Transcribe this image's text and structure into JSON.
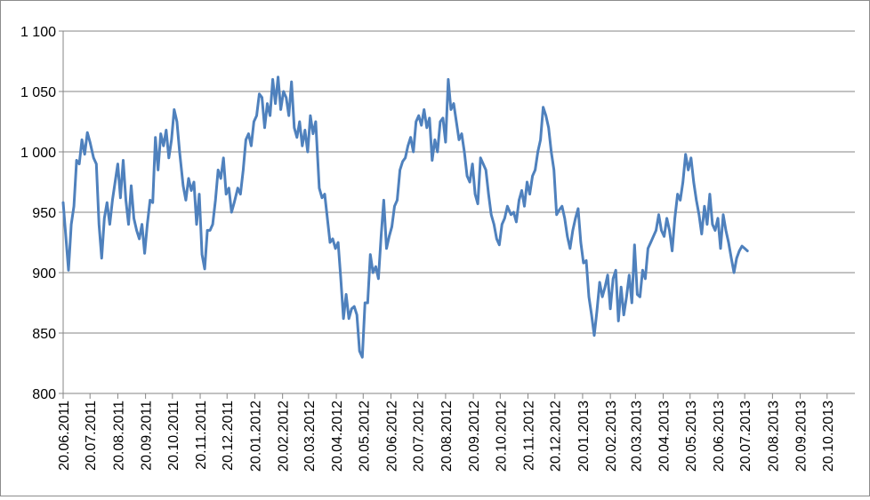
{
  "chart_data": {
    "type": "line",
    "title": "",
    "xlabel": "",
    "ylabel": "",
    "ylim": [
      800,
      1100
    ],
    "yticks": [
      800,
      850,
      900,
      950,
      1000,
      1050,
      1100
    ],
    "ytick_labels": [
      "800",
      "850",
      "900",
      "950",
      "1 000",
      "1 050",
      "1 100"
    ],
    "xlim": [
      "2011-06-20",
      "2013-11-20"
    ],
    "x_tick_labels": [
      "20.06.2011",
      "20.07.2011",
      "20.08.2011",
      "20.09.2011",
      "20.10.2011",
      "20.11.2011",
      "20.12.2011",
      "20.01.2012",
      "20.02.2012",
      "20.03.2012",
      "20.04.2012",
      "20.05.2012",
      "20.06.2012",
      "20.07.2012",
      "20.08.2012",
      "20.09.2012",
      "20.10.2012",
      "20.11.2012",
      "20.12.2012",
      "20.01.2013",
      "20.02.2013",
      "20.03.2013",
      "20.04.2013",
      "20.05.2013",
      "20.06.2013",
      "20.07.2013",
      "20.08.2013",
      "20.09.2013",
      "20.10.2013"
    ],
    "grid": "horizontal",
    "legend": "none",
    "line_color": "#4f81bd",
    "series": [
      {
        "values": [
          [
            "2011-06-20",
            958
          ],
          [
            "2011-06-23",
            930
          ],
          [
            "2011-06-26",
            902
          ],
          [
            "2011-06-29",
            940
          ],
          [
            "2011-07-02",
            955
          ],
          [
            "2011-07-05",
            993
          ],
          [
            "2011-07-08",
            990
          ],
          [
            "2011-07-11",
            1010
          ],
          [
            "2011-07-14",
            998
          ],
          [
            "2011-07-17",
            1016
          ],
          [
            "2011-07-20",
            1008
          ],
          [
            "2011-07-24",
            995
          ],
          [
            "2011-07-27",
            990
          ],
          [
            "2011-07-30",
            940
          ],
          [
            "2011-08-02",
            912
          ],
          [
            "2011-08-05",
            945
          ],
          [
            "2011-08-08",
            958
          ],
          [
            "2011-08-11",
            940
          ],
          [
            "2011-08-14",
            960
          ],
          [
            "2011-08-17",
            975
          ],
          [
            "2011-08-20",
            990
          ],
          [
            "2011-08-23",
            962
          ],
          [
            "2011-08-26",
            993
          ],
          [
            "2011-08-29",
            960
          ],
          [
            "2011-09-01",
            940
          ],
          [
            "2011-09-04",
            972
          ],
          [
            "2011-09-07",
            945
          ],
          [
            "2011-09-10",
            935
          ],
          [
            "2011-09-13",
            928
          ],
          [
            "2011-09-16",
            940
          ],
          [
            "2011-09-19",
            916
          ],
          [
            "2011-09-22",
            940
          ],
          [
            "2011-09-25",
            960
          ],
          [
            "2011-09-28",
            958
          ],
          [
            "2011-10-01",
            1012
          ],
          [
            "2011-10-04",
            985
          ],
          [
            "2011-10-07",
            1015
          ],
          [
            "2011-10-10",
            1005
          ],
          [
            "2011-10-13",
            1018
          ],
          [
            "2011-10-16",
            995
          ],
          [
            "2011-10-19",
            1010
          ],
          [
            "2011-10-22",
            1035
          ],
          [
            "2011-10-25",
            1025
          ],
          [
            "2011-10-28",
            1000
          ],
          [
            "2011-11-01",
            972
          ],
          [
            "2011-11-04",
            960
          ],
          [
            "2011-11-07",
            978
          ],
          [
            "2011-11-10",
            968
          ],
          [
            "2011-11-13",
            975
          ],
          [
            "2011-11-16",
            940
          ],
          [
            "2011-11-19",
            965
          ],
          [
            "2011-11-22",
            915
          ],
          [
            "2011-11-25",
            903
          ],
          [
            "2011-11-28",
            935
          ],
          [
            "2011-12-01",
            935
          ],
          [
            "2011-12-04",
            940
          ],
          [
            "2011-12-07",
            960
          ],
          [
            "2011-12-10",
            985
          ],
          [
            "2011-12-13",
            978
          ],
          [
            "2011-12-16",
            995
          ],
          [
            "2011-12-19",
            965
          ],
          [
            "2011-12-22",
            970
          ],
          [
            "2011-12-25",
            950
          ],
          [
            "2011-12-28",
            958
          ],
          [
            "2012-01-01",
            970
          ],
          [
            "2012-01-04",
            965
          ],
          [
            "2012-01-07",
            985
          ],
          [
            "2012-01-10",
            1010
          ],
          [
            "2012-01-13",
            1015
          ],
          [
            "2012-01-16",
            1005
          ],
          [
            "2012-01-19",
            1025
          ],
          [
            "2012-01-22",
            1030
          ],
          [
            "2012-01-25",
            1048
          ],
          [
            "2012-01-28",
            1045
          ],
          [
            "2012-01-31",
            1020
          ],
          [
            "2012-02-03",
            1040
          ],
          [
            "2012-02-06",
            1030
          ],
          [
            "2012-02-09",
            1060
          ],
          [
            "2012-02-12",
            1040
          ],
          [
            "2012-02-15",
            1062
          ],
          [
            "2012-02-18",
            1035
          ],
          [
            "2012-02-21",
            1050
          ],
          [
            "2012-02-24",
            1045
          ],
          [
            "2012-02-27",
            1030
          ],
          [
            "2012-03-01",
            1058
          ],
          [
            "2012-03-04",
            1020
          ],
          [
            "2012-03-07",
            1012
          ],
          [
            "2012-03-10",
            1025
          ],
          [
            "2012-03-13",
            1005
          ],
          [
            "2012-03-16",
            1018
          ],
          [
            "2012-03-19",
            1000
          ],
          [
            "2012-03-22",
            1030
          ],
          [
            "2012-03-25",
            1015
          ],
          [
            "2012-03-28",
            1025
          ],
          [
            "2012-04-01",
            970
          ],
          [
            "2012-04-04",
            962
          ],
          [
            "2012-04-07",
            965
          ],
          [
            "2012-04-10",
            945
          ],
          [
            "2012-04-13",
            925
          ],
          [
            "2012-04-16",
            928
          ],
          [
            "2012-04-19",
            920
          ],
          [
            "2012-04-22",
            925
          ],
          [
            "2012-04-25",
            895
          ],
          [
            "2012-04-28",
            862
          ],
          [
            "2012-05-01",
            882
          ],
          [
            "2012-05-04",
            862
          ],
          [
            "2012-05-07",
            870
          ],
          [
            "2012-05-10",
            872
          ],
          [
            "2012-05-13",
            865
          ],
          [
            "2012-05-16",
            835
          ],
          [
            "2012-05-19",
            830
          ],
          [
            "2012-05-22",
            875
          ],
          [
            "2012-05-25",
            875
          ],
          [
            "2012-05-28",
            915
          ],
          [
            "2012-05-31",
            900
          ],
          [
            "2012-06-03",
            905
          ],
          [
            "2012-06-06",
            895
          ],
          [
            "2012-06-09",
            930
          ],
          [
            "2012-06-12",
            960
          ],
          [
            "2012-06-15",
            920
          ],
          [
            "2012-06-18",
            930
          ],
          [
            "2012-06-21",
            938
          ],
          [
            "2012-06-24",
            955
          ],
          [
            "2012-06-27",
            960
          ],
          [
            "2012-06-30",
            985
          ],
          [
            "2012-07-03",
            992
          ],
          [
            "2012-07-06",
            995
          ],
          [
            "2012-07-09",
            1005
          ],
          [
            "2012-07-12",
            1012
          ],
          [
            "2012-07-15",
            1000
          ],
          [
            "2012-07-18",
            1025
          ],
          [
            "2012-07-21",
            1030
          ],
          [
            "2012-07-24",
            1022
          ],
          [
            "2012-07-27",
            1035
          ],
          [
            "2012-07-30",
            1020
          ],
          [
            "2012-08-02",
            1028
          ],
          [
            "2012-08-05",
            993
          ],
          [
            "2012-08-08",
            1010
          ],
          [
            "2012-08-11",
            1000
          ],
          [
            "2012-08-14",
            1025
          ],
          [
            "2012-08-17",
            1028
          ],
          [
            "2012-08-20",
            1008
          ],
          [
            "2012-08-23",
            1060
          ],
          [
            "2012-08-26",
            1035
          ],
          [
            "2012-08-29",
            1040
          ],
          [
            "2012-09-01",
            1025
          ],
          [
            "2012-09-04",
            1010
          ],
          [
            "2012-09-07",
            1015
          ],
          [
            "2012-09-10",
            1000
          ],
          [
            "2012-09-13",
            980
          ],
          [
            "2012-09-16",
            975
          ],
          [
            "2012-09-19",
            990
          ],
          [
            "2012-09-22",
            965
          ],
          [
            "2012-09-25",
            957
          ],
          [
            "2012-09-28",
            995
          ],
          [
            "2012-10-01",
            990
          ],
          [
            "2012-10-04",
            985
          ],
          [
            "2012-10-07",
            965
          ],
          [
            "2012-10-10",
            948
          ],
          [
            "2012-10-13",
            940
          ],
          [
            "2012-10-16",
            928
          ],
          [
            "2012-10-19",
            923
          ],
          [
            "2012-10-22",
            940
          ],
          [
            "2012-10-25",
            945
          ],
          [
            "2012-10-28",
            955
          ],
          [
            "2012-11-01",
            948
          ],
          [
            "2012-11-04",
            950
          ],
          [
            "2012-11-07",
            942
          ],
          [
            "2012-11-10",
            960
          ],
          [
            "2012-11-13",
            968
          ],
          [
            "2012-11-16",
            955
          ],
          [
            "2012-11-19",
            975
          ],
          [
            "2012-11-22",
            965
          ],
          [
            "2012-11-25",
            980
          ],
          [
            "2012-11-28",
            985
          ],
          [
            "2012-12-01",
            1000
          ],
          [
            "2012-12-04",
            1010
          ],
          [
            "2012-12-07",
            1037
          ],
          [
            "2012-12-10",
            1030
          ],
          [
            "2012-12-13",
            1020
          ],
          [
            "2012-12-16",
            1000
          ],
          [
            "2012-12-19",
            985
          ],
          [
            "2012-12-22",
            948
          ],
          [
            "2012-12-25",
            952
          ],
          [
            "2012-12-28",
            955
          ],
          [
            "2012-12-31",
            945
          ],
          [
            "2013-01-03",
            930
          ],
          [
            "2013-01-06",
            920
          ],
          [
            "2013-01-09",
            935
          ],
          [
            "2013-01-12",
            945
          ],
          [
            "2013-01-15",
            953
          ],
          [
            "2013-01-18",
            925
          ],
          [
            "2013-01-21",
            908
          ],
          [
            "2013-01-24",
            910
          ],
          [
            "2013-01-27",
            880
          ],
          [
            "2013-01-30",
            865
          ],
          [
            "2013-02-02",
            848
          ],
          [
            "2013-02-05",
            868
          ],
          [
            "2013-02-08",
            892
          ],
          [
            "2013-02-11",
            880
          ],
          [
            "2013-02-14",
            888
          ],
          [
            "2013-02-17",
            898
          ],
          [
            "2013-02-20",
            870
          ],
          [
            "2013-02-23",
            895
          ],
          [
            "2013-02-26",
            902
          ],
          [
            "2013-03-01",
            860
          ],
          [
            "2013-03-04",
            888
          ],
          [
            "2013-03-07",
            865
          ],
          [
            "2013-03-10",
            880
          ],
          [
            "2013-03-13",
            898
          ],
          [
            "2013-03-16",
            875
          ],
          [
            "2013-03-19",
            923
          ],
          [
            "2013-03-22",
            882
          ],
          [
            "2013-03-25",
            880
          ],
          [
            "2013-03-28",
            902
          ],
          [
            "2013-03-31",
            895
          ],
          [
            "2013-04-03",
            920
          ],
          [
            "2013-04-06",
            925
          ],
          [
            "2013-04-09",
            930
          ],
          [
            "2013-04-12",
            935
          ],
          [
            "2013-04-15",
            948
          ],
          [
            "2013-04-18",
            935
          ],
          [
            "2013-04-21",
            930
          ],
          [
            "2013-04-24",
            945
          ],
          [
            "2013-04-27",
            935
          ],
          [
            "2013-04-30",
            918
          ],
          [
            "2013-05-03",
            945
          ],
          [
            "2013-05-06",
            965
          ],
          [
            "2013-05-09",
            960
          ],
          [
            "2013-05-12",
            975
          ],
          [
            "2013-05-15",
            998
          ],
          [
            "2013-05-18",
            985
          ],
          [
            "2013-05-21",
            995
          ],
          [
            "2013-05-24",
            975
          ],
          [
            "2013-05-27",
            960
          ],
          [
            "2013-05-30",
            948
          ],
          [
            "2013-06-02",
            932
          ],
          [
            "2013-06-05",
            955
          ],
          [
            "2013-06-08",
            940
          ],
          [
            "2013-06-11",
            965
          ],
          [
            "2013-06-14",
            940
          ],
          [
            "2013-06-17",
            935
          ],
          [
            "2013-06-20",
            945
          ],
          [
            "2013-06-23",
            920
          ],
          [
            "2013-06-26",
            948
          ],
          [
            "2013-06-29",
            935
          ],
          [
            "2013-07-02",
            925
          ],
          [
            "2013-07-05",
            912
          ],
          [
            "2013-07-08",
            900
          ],
          [
            "2013-07-11",
            912
          ],
          [
            "2013-07-14",
            918
          ],
          [
            "2013-07-17",
            922
          ],
          [
            "2013-07-20",
            920
          ],
          [
            "2013-07-23",
            918
          ]
        ]
      }
    ]
  }
}
